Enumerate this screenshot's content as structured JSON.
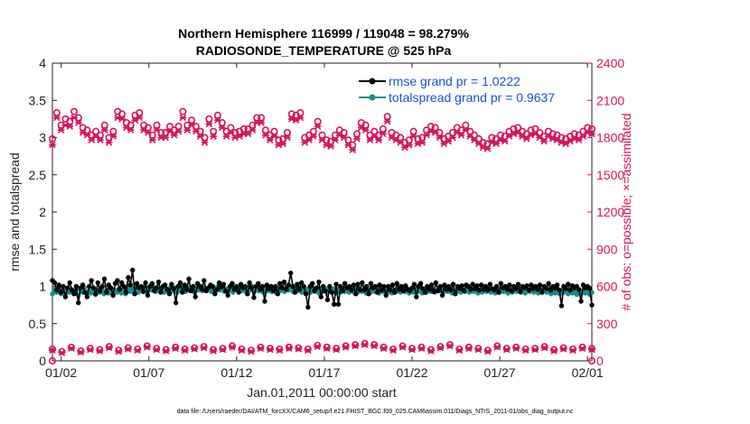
{
  "chart_data": {
    "type": "line",
    "title": "Northern Hemisphere 116999 / 119048 = 98.279%",
    "subtitle": "RADIOSONDE_TEMPERATURE @ 525 hPa",
    "xlabel": "Jan.01,2011 00:00:00 start",
    "ylabel_left": "rmse and totalspread",
    "ylabel_right": "# of obs: o=possible; ×=assimilated",
    "x_tick_labels": [
      "01/02",
      "01/07",
      "01/12",
      "01/17",
      "01/22",
      "01/27",
      "02/01"
    ],
    "x_tick_days": [
      1,
      6,
      11,
      16,
      21,
      26,
      31
    ],
    "xlim": [
      0.5,
      31.25
    ],
    "ylim_left": [
      0,
      4
    ],
    "y_ticks_left": [
      "0",
      "0.5",
      "1",
      "1.5",
      "2",
      "2.5",
      "3",
      "3.5",
      "4"
    ],
    "ylim_right": [
      0,
      2400
    ],
    "y_ticks_right": [
      "0",
      "300",
      "600",
      "900",
      "1200",
      "1500",
      "1800",
      "2100",
      "2400"
    ],
    "footer": "data file: /Users/raeder/DAI/ATM_forcXX/CAM6_setup/f.e21.FHIST_BGC.f09_025.CAM6assim.011/Diags_NTrS_2011-01/obs_diag_output.nc",
    "series": [
      {
        "name": "rmse grand pr = 1.0222",
        "axis": "left",
        "color": "#000000",
        "marker": "dot",
        "values": [
          1.08,
          1.05,
          0.95,
          1.02,
          0.92,
          1.0,
          0.86,
          0.98,
          1.05,
          0.95,
          0.9,
          1.0,
          0.78,
          0.98,
          1.02,
          0.92,
          0.86,
          1.0,
          1.08,
          0.98,
          0.9,
          1.05,
          0.94,
          1.0,
          1.1,
          0.92,
          1.02,
          0.98,
          0.88,
          1.04,
          1.08,
          0.96,
          1.05,
          1.0,
          0.92,
          1.12,
          1.02,
          1.22,
          0.9,
          1.04,
          0.98,
          1.0,
          0.93,
          1.05,
          0.88,
          1.0,
          1.04,
          0.94,
          0.98,
          1.06,
          0.92,
          1.0,
          1.02,
          0.96,
          0.9,
          1.03,
          0.97,
          0.78,
          1.0,
          1.05,
          0.92,
          1.02,
          0.96,
          1.1,
          0.94,
          1.0,
          0.86,
          1.04,
          1.0,
          0.96,
          1.08,
          0.94,
          0.98,
          1.02,
          1.0,
          0.9,
          0.96,
          1.05,
          0.99,
          1.03,
          0.94,
          0.88,
          1.0,
          1.04,
          0.96,
          1.0,
          0.92,
          1.03,
          0.98,
          1.0,
          0.9,
          1.05,
          0.98,
          0.85,
          1.0,
          1.04,
          0.96,
          1.0,
          0.8,
          1.02,
          0.97,
          1.0,
          0.94,
          1.0,
          0.9,
          1.04,
          0.98,
          1.06,
          0.96,
          1.02,
          1.18,
          1.0,
          0.92,
          1.03,
          0.96,
          1.05,
          1.0,
          0.9,
          0.72,
          1.0,
          1.04,
          0.94,
          0.98,
          1.06,
          0.86,
          1.0,
          0.94,
          0.82,
          1.0,
          0.92,
          0.76,
          1.03,
          0.76,
          1.0,
          0.94,
          1.04,
          0.98,
          1.0,
          0.95,
          1.02,
          0.9,
          1.03,
          0.95,
          1.05,
          0.95,
          1.0,
          0.9,
          1.04,
          0.98,
          1.0,
          0.92,
          1.02,
          0.95,
          1.0,
          0.88,
          1.0,
          0.95,
          1.02,
          0.92,
          1.04,
          0.96,
          1.0,
          0.94,
          1.01,
          0.96,
          0.94,
          0.98,
          1.03,
          0.86,
          1.0,
          1.04,
          0.97,
          0.92,
          1.0,
          0.96,
          1.02,
          0.93,
          1.05,
          0.94,
          1.0,
          0.88,
          1.02,
          0.96,
          1.0,
          0.95,
          1.03,
          0.9,
          1.0,
          0.97,
          1.01,
          0.94,
          1.02,
          1.0,
          0.96,
          1.03,
          0.97,
          1.01,
          0.95,
          1.02,
          0.96,
          1.0,
          0.95,
          1.03,
          0.97,
          0.95,
          1.0,
          0.92,
          1.04,
          0.98,
          1.0,
          0.96,
          1.02,
          0.94,
          1.0,
          0.97,
          1.03,
          0.93,
          1.0,
          0.98,
          1.01,
          0.95,
          1.02,
          0.97,
          1.0,
          0.96,
          1.02,
          0.92,
          1.0,
          0.97,
          1.04,
          0.95,
          1.0,
          0.98,
          1.02,
          0.95,
          0.74,
          1.0,
          0.97,
          1.03,
          0.95,
          1.01,
          0.98,
          1.0,
          0.96,
          0.8,
          1.02,
          0.98,
          1.0,
          0.97,
          0.75
        ]
      },
      {
        "name": "totalspread grand pr = 0.9637",
        "axis": "left",
        "color": "#138d8d",
        "marker": "dot",
        "values": [
          0.9,
          0.96,
          0.92,
          0.98,
          0.9,
          0.94,
          0.89,
          0.97,
          0.92,
          0.96,
          0.9,
          0.95,
          0.88,
          0.96,
          0.92,
          0.98,
          0.9,
          0.94,
          0.91,
          0.96,
          0.89,
          0.95,
          0.92,
          0.97,
          0.9,
          0.94,
          0.91,
          0.96,
          0.9,
          0.95,
          0.92,
          0.97,
          0.91,
          0.96,
          0.9,
          0.98,
          0.93,
          0.97,
          0.91,
          0.99,
          0.92,
          0.98,
          0.94,
          1.0,
          0.93,
          0.97,
          0.95,
          0.99,
          0.93,
          0.97,
          0.94,
          0.98,
          0.92,
          0.97,
          0.93,
          0.99,
          0.94,
          0.98,
          0.92,
          0.97,
          0.94,
          0.99,
          0.93,
          0.98,
          0.94,
          0.99,
          0.92,
          0.97,
          0.95,
          1.0,
          0.94,
          0.98,
          0.95,
          0.99,
          0.93,
          0.98,
          0.94,
          1.0,
          0.95,
          0.99,
          0.93,
          0.97,
          0.94,
          0.98,
          0.92,
          0.97,
          0.95,
          0.99,
          0.94,
          0.98,
          0.93,
          0.99,
          0.95,
          1.0,
          0.93,
          0.98,
          0.94,
          0.99,
          0.92,
          0.97,
          0.94,
          0.98,
          0.93,
          0.97,
          0.92,
          0.96,
          0.94,
          0.98,
          0.93,
          0.97,
          0.95,
          0.99,
          0.93,
          0.97,
          0.94,
          0.98,
          0.92,
          0.96,
          0.94,
          0.97,
          0.92,
          0.96,
          0.93,
          0.98,
          0.91,
          0.96,
          0.93,
          0.97,
          0.92,
          0.95,
          0.93,
          0.97,
          0.91,
          0.96,
          0.92,
          0.98,
          0.93,
          0.97,
          0.92,
          0.96,
          0.93,
          0.98,
          0.92,
          0.97,
          0.93,
          0.96,
          0.91,
          0.95,
          0.92,
          0.97,
          0.93,
          0.96,
          0.91,
          0.95,
          0.93,
          0.97,
          0.92,
          0.96,
          0.91,
          0.95,
          0.93,
          0.98,
          0.92,
          0.96,
          0.93,
          0.97,
          0.91,
          0.96,
          0.92,
          0.97,
          0.93,
          0.96,
          0.91,
          0.95,
          0.92,
          0.97,
          0.93,
          0.96,
          0.92,
          0.95,
          0.94,
          0.98,
          0.92,
          0.96,
          0.93,
          0.97,
          0.91,
          0.95,
          0.93,
          0.97,
          0.92,
          0.96,
          0.93,
          0.98,
          0.92,
          0.96,
          0.93,
          0.97,
          0.91,
          0.95,
          0.92,
          0.96,
          0.93,
          0.97,
          0.92,
          0.96,
          0.91,
          0.95,
          0.92,
          0.96,
          0.93,
          0.97,
          0.91,
          0.95,
          0.92,
          0.96,
          0.93,
          0.97,
          0.92,
          0.95,
          0.91,
          0.96,
          0.93,
          0.97,
          0.92,
          0.95,
          0.91,
          0.96,
          0.93,
          0.97,
          0.92,
          0.95,
          0.9,
          0.94,
          0.91,
          0.96,
          0.9,
          0.95,
          0.92,
          0.96,
          0.9,
          0.94,
          0.91,
          0.95,
          0.89,
          0.93,
          0.9,
          0.94,
          0.91,
          0.95,
          0.89,
          0.92
        ]
      },
      {
        "name": "obs possible (upper)",
        "axis": "right",
        "color": "#d4145a",
        "marker": "circle",
        "values": [
          1790,
          2000,
          1900,
          1950,
          1930,
          2010,
          1960,
          1880,
          1860,
          1820,
          1850,
          1820,
          1900,
          1800,
          1850,
          2010,
          1990,
          1920,
          1900,
          1980,
          2000,
          1900,
          1880,
          1820,
          1900,
          1840,
          1840,
          1890,
          1860,
          1890,
          2010,
          1900,
          1940,
          1890,
          1850,
          1800,
          1950,
          1850,
          1980,
          1920,
          1850,
          1880,
          1840,
          1850,
          1870,
          1870,
          1900,
          1960,
          1960,
          1860,
          1820,
          1850,
          1780,
          1790,
          1840,
          1990,
          1980,
          2000,
          1800,
          1820,
          1850,
          1930,
          1820,
          1780,
          1770,
          1820,
          1860,
          1840,
          1780,
          1740,
          1830,
          1920,
          1900,
          1820,
          1850,
          1820,
          1870,
          1970,
          1840,
          1820,
          1800,
          1760,
          1780,
          1850,
          1790,
          1800,
          1860,
          1890,
          1880,
          1840,
          1790,
          1810,
          1840,
          1880,
          1860,
          1900,
          1850,
          1820,
          1790,
          1760,
          1750,
          1800,
          1790,
          1820,
          1810,
          1850,
          1870,
          1880,
          1850,
          1830,
          1860,
          1870,
          1840,
          1810,
          1850,
          1830,
          1820,
          1800,
          1790,
          1810,
          1830,
          1820,
          1850,
          1880,
          1870
        ]
      },
      {
        "name": "obs assimilated (upper)",
        "axis": "right",
        "color": "#d4145a",
        "marker": "x",
        "values": [
          1740,
          1960,
          1860,
          1900,
          1890,
          1960,
          1920,
          1840,
          1820,
          1780,
          1810,
          1780,
          1860,
          1760,
          1810,
          1960,
          1950,
          1880,
          1860,
          1940,
          1960,
          1860,
          1840,
          1780,
          1860,
          1800,
          1800,
          1850,
          1820,
          1850,
          1960,
          1860,
          1900,
          1850,
          1810,
          1760,
          1910,
          1810,
          1940,
          1880,
          1810,
          1840,
          1800,
          1810,
          1830,
          1830,
          1860,
          1920,
          1920,
          1820,
          1780,
          1810,
          1740,
          1750,
          1800,
          1950,
          1940,
          1960,
          1760,
          1780,
          1810,
          1890,
          1780,
          1740,
          1730,
          1780,
          1820,
          1800,
          1740,
          1700,
          1790,
          1880,
          1860,
          1780,
          1810,
          1780,
          1830,
          1930,
          1800,
          1780,
          1760,
          1720,
          1740,
          1810,
          1750,
          1760,
          1820,
          1850,
          1840,
          1800,
          1750,
          1770,
          1800,
          1840,
          1820,
          1860,
          1810,
          1780,
          1750,
          1720,
          1710,
          1760,
          1750,
          1780,
          1770,
          1810,
          1830,
          1840,
          1810,
          1790,
          1820,
          1830,
          1800,
          1770,
          1810,
          1790,
          1780,
          1760,
          1750,
          1770,
          1790,
          1780,
          1810,
          1840,
          1830
        ]
      },
      {
        "name": "obs possible (lower)",
        "axis": "right",
        "color": "#d4145a",
        "marker": "circle",
        "values": [
          95,
          75,
          110,
          80,
          100,
          90,
          115,
          85,
          105,
          95,
          120,
          100,
          90,
          110,
          95,
          105,
          115,
          90,
          100,
          120,
          95,
          85,
          110,
          100,
          95,
          110,
          105,
          95,
          125,
          110,
          100,
          120,
          130,
          140,
          130,
          110,
          95,
          120,
          100,
          110,
          90,
          115,
          130,
          95,
          110,
          100,
          85,
          120,
          100,
          110,
          95,
          100,
          115,
          90,
          105,
          95,
          110,
          100
        ]
      },
      {
        "name": "obs assimilated (lower)",
        "axis": "right",
        "color": "#d4145a",
        "marker": "x",
        "values": [
          85,
          65,
          100,
          70,
          90,
          80,
          105,
          75,
          95,
          85,
          110,
          90,
          80,
          100,
          85,
          95,
          105,
          80,
          90,
          110,
          85,
          75,
          100,
          90,
          85,
          100,
          95,
          85,
          115,
          100,
          90,
          110,
          120,
          130,
          120,
          100,
          85,
          110,
          90,
          100,
          80,
          105,
          120,
          85,
          100,
          90,
          75,
          110,
          90,
          100,
          85,
          90,
          105,
          80,
          95,
          85,
          100,
          90
        ]
      }
    ],
    "legend": {
      "position": "top-right",
      "entries": [
        "rmse grand pr = 1.0222",
        "totalspread grand pr = 0.9637"
      ]
    },
    "colors": {
      "rmse": "#000000",
      "spread": "#138d8d",
      "obs": "#d4145a",
      "legend_text": "#1a4fd6"
    }
  }
}
